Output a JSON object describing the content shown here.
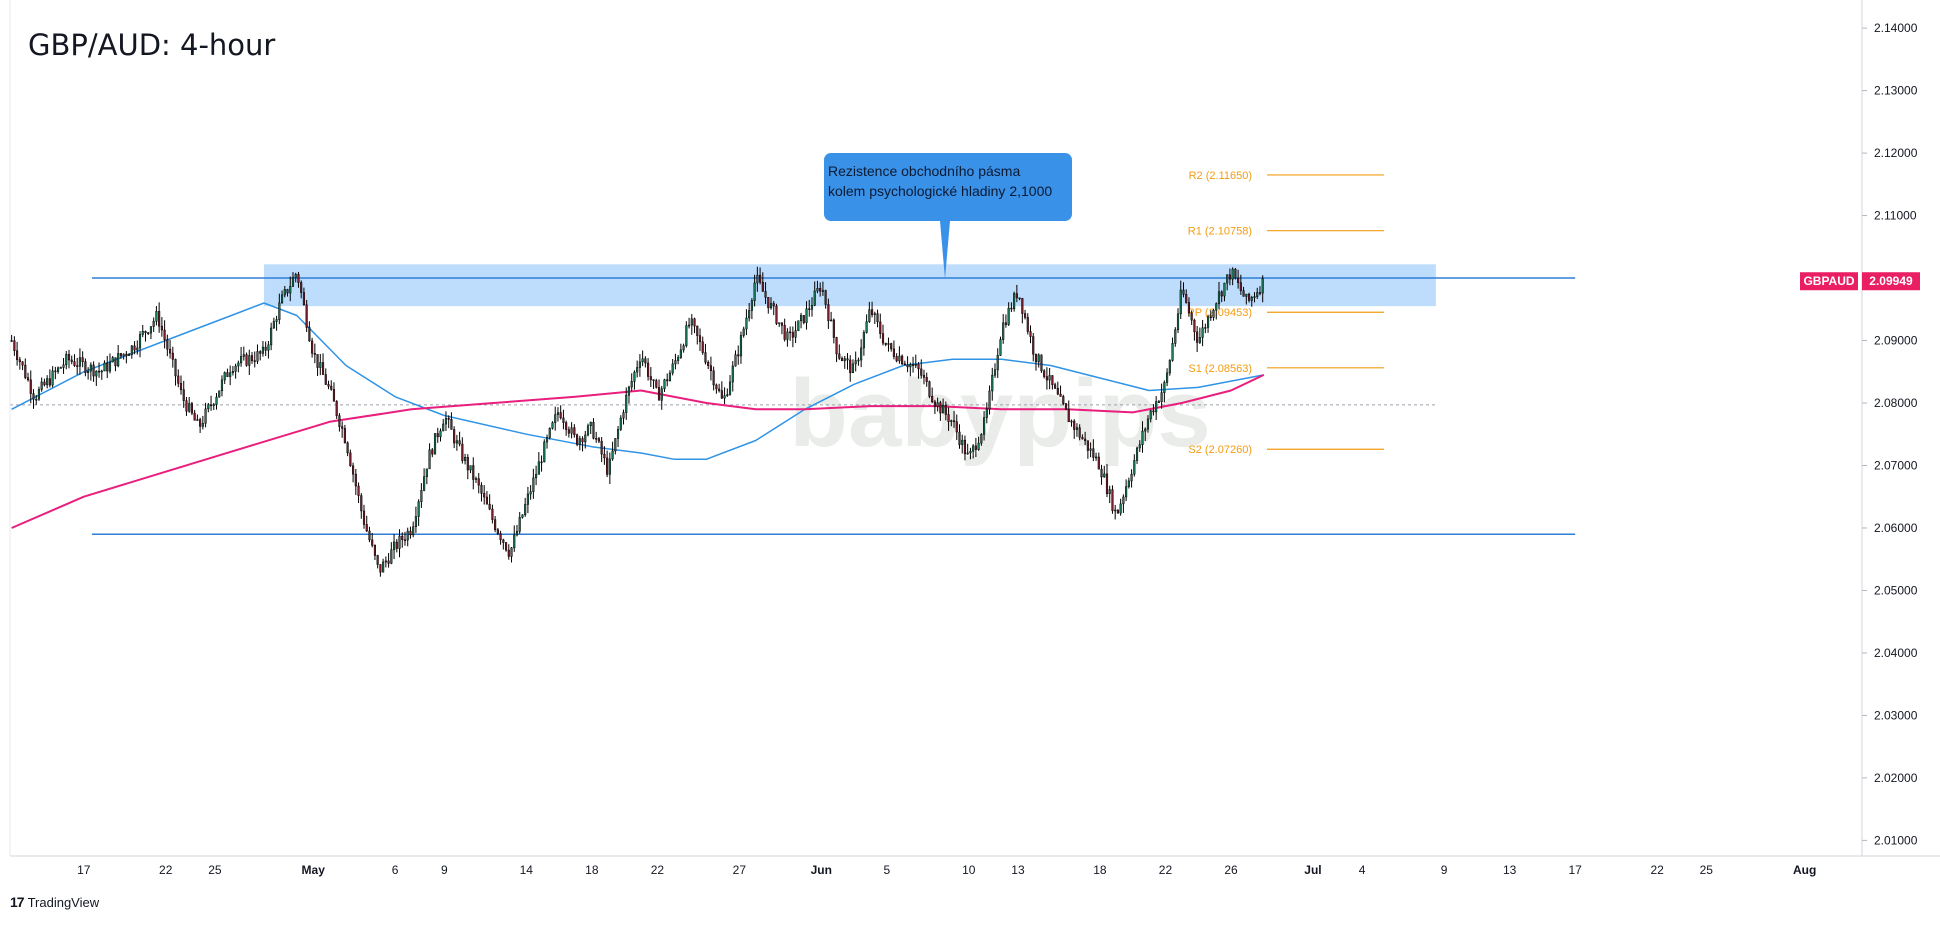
{
  "header": {
    "title": "GBP/AUD: 4-hour"
  },
  "annotation": {
    "line1": "Rezistence obchodního pásma",
    "line2": "kolem psychologické hladiny 2,1000"
  },
  "watermark": {
    "text": "babypips"
  },
  "branding": {
    "text": "TradingView"
  },
  "colors": {
    "up_candle": "#1b7a5a",
    "down_candle": "#7a1f2c",
    "sma_fast": "#2f93e6",
    "sma_slow": "#e91e7d",
    "pivot_levels": "#f39c12",
    "zone": "#b3d7fb",
    "horizontal_lines": "#2f7fd6",
    "price_tag": "#e91e63",
    "callout": "#3a91e8"
  },
  "price_tag": {
    "symbol": "GBPAUD",
    "price": "2.09949"
  },
  "chart_data": {
    "type": "candlestick",
    "symbol": "GBPAUD",
    "timeframe": "4-hour",
    "title": "GBP/AUD: 4-hour",
    "y_axis": {
      "position": "right",
      "ylim": [
        2.0075,
        2.1445
      ],
      "ticks": [
        "2.14000",
        "2.13000",
        "2.12000",
        "2.11000",
        "2.10000",
        "2.09000",
        "2.08000",
        "2.07000",
        "2.06000",
        "2.05000",
        "2.04000",
        "2.03000",
        "2.02000",
        "2.01000"
      ]
    },
    "x_axis": {
      "ticks": [
        {
          "label": "17",
          "day": 0
        },
        {
          "label": "22",
          "day": 5
        },
        {
          "label": "25",
          "day": 8
        },
        {
          "label": "May",
          "day": 14
        },
        {
          "label": "6",
          "day": 19
        },
        {
          "label": "9",
          "day": 22
        },
        {
          "label": "14",
          "day": 27
        },
        {
          "label": "18",
          "day": 31
        },
        {
          "label": "22",
          "day": 35
        },
        {
          "label": "27",
          "day": 40
        },
        {
          "label": "Jun",
          "day": 45
        },
        {
          "label": "5",
          "day": 49
        },
        {
          "label": "10",
          "day": 54
        },
        {
          "label": "13",
          "day": 57
        },
        {
          "label": "18",
          "day": 62
        },
        {
          "label": "22",
          "day": 66
        },
        {
          "label": "26",
          "day": 70
        },
        {
          "label": "Jul",
          "day": 75
        },
        {
          "label": "4",
          "day": 78
        },
        {
          "label": "9",
          "day": 83
        },
        {
          "label": "13",
          "day": 87
        },
        {
          "label": "17",
          "day": 91
        },
        {
          "label": "22",
          "day": 96
        },
        {
          "label": "25",
          "day": 99
        },
        {
          "label": "Aug",
          "day": 105
        }
      ],
      "xlim_days": [
        -4.5,
        108.5
      ]
    },
    "price_path": [
      {
        "day": -4.4,
        "price": 2.09
      },
      {
        "day": -3,
        "price": 2.081
      },
      {
        "day": -1,
        "price": 2.087
      },
      {
        "day": 1,
        "price": 2.085
      },
      {
        "day": 3,
        "price": 2.089
      },
      {
        "day": 4.5,
        "price": 2.094
      },
      {
        "day": 6,
        "price": 2.081
      },
      {
        "day": 7,
        "price": 2.076
      },
      {
        "day": 9,
        "price": 2.086
      },
      {
        "day": 11,
        "price": 2.088
      },
      {
        "day": 12,
        "price": 2.096
      },
      {
        "day": 13,
        "price": 2.101
      },
      {
        "day": 14,
        "price": 2.088
      },
      {
        "day": 15,
        "price": 2.082
      },
      {
        "day": 16,
        "price": 2.074
      },
      {
        "day": 17,
        "price": 2.062
      },
      {
        "day": 18,
        "price": 2.053
      },
      {
        "day": 19,
        "price": 2.057
      },
      {
        "day": 20,
        "price": 2.06
      },
      {
        "day": 21,
        "price": 2.071
      },
      {
        "day": 22,
        "price": 2.078
      },
      {
        "day": 23,
        "price": 2.072
      },
      {
        "day": 24,
        "price": 2.067
      },
      {
        "day": 25,
        "price": 2.061
      },
      {
        "day": 26,
        "price": 2.056
      },
      {
        "day": 27,
        "price": 2.064
      },
      {
        "day": 28,
        "price": 2.072
      },
      {
        "day": 29,
        "price": 2.079
      },
      {
        "day": 30,
        "price": 2.074
      },
      {
        "day": 31,
        "price": 2.076
      },
      {
        "day": 32,
        "price": 2.069
      },
      {
        "day": 33,
        "price": 2.08
      },
      {
        "day": 34,
        "price": 2.088
      },
      {
        "day": 35,
        "price": 2.081
      },
      {
        "day": 36,
        "price": 2.086
      },
      {
        "day": 37,
        "price": 2.093
      },
      {
        "day": 38,
        "price": 2.087
      },
      {
        "day": 39,
        "price": 2.08
      },
      {
        "day": 40,
        "price": 2.089
      },
      {
        "day": 41,
        "price": 2.1
      },
      {
        "day": 42,
        "price": 2.095
      },
      {
        "day": 43,
        "price": 2.09
      },
      {
        "day": 44,
        "price": 2.094
      },
      {
        "day": 45,
        "price": 2.099
      },
      {
        "day": 46,
        "price": 2.088
      },
      {
        "day": 47,
        "price": 2.085
      },
      {
        "day": 48,
        "price": 2.095
      },
      {
        "day": 49,
        "price": 2.089
      },
      {
        "day": 50,
        "price": 2.087
      },
      {
        "day": 51,
        "price": 2.085
      },
      {
        "day": 52,
        "price": 2.08
      },
      {
        "day": 53,
        "price": 2.077
      },
      {
        "day": 54,
        "price": 2.071
      },
      {
        "day": 55,
        "price": 2.077
      },
      {
        "day": 56,
        "price": 2.092
      },
      {
        "day": 57,
        "price": 2.098
      },
      {
        "day": 58,
        "price": 2.088
      },
      {
        "day": 59,
        "price": 2.083
      },
      {
        "day": 60,
        "price": 2.078
      },
      {
        "day": 61,
        "price": 2.074
      },
      {
        "day": 62,
        "price": 2.07
      },
      {
        "day": 63,
        "price": 2.062
      },
      {
        "day": 64,
        "price": 2.07
      },
      {
        "day": 65,
        "price": 2.078
      },
      {
        "day": 66,
        "price": 2.083
      },
      {
        "day": 67,
        "price": 2.098
      },
      {
        "day": 68,
        "price": 2.09
      },
      {
        "day": 69,
        "price": 2.096
      },
      {
        "day": 70,
        "price": 2.101
      },
      {
        "day": 71,
        "price": 2.096
      },
      {
        "day": 72,
        "price": 2.0995
      }
    ],
    "series": [
      {
        "name": "sma_fast",
        "color": "#2f93e6",
        "points": [
          {
            "day": -4.4,
            "price": 2.079
          },
          {
            "day": 0,
            "price": 2.085
          },
          {
            "day": 5,
            "price": 2.09
          },
          {
            "day": 9,
            "price": 2.094
          },
          {
            "day": 11,
            "price": 2.096
          },
          {
            "day": 13,
            "price": 2.094
          },
          {
            "day": 16,
            "price": 2.086
          },
          {
            "day": 19,
            "price": 2.081
          },
          {
            "day": 22,
            "price": 2.078
          },
          {
            "day": 27,
            "price": 2.075
          },
          {
            "day": 31,
            "price": 2.073
          },
          {
            "day": 34,
            "price": 2.072
          },
          {
            "day": 36,
            "price": 2.071
          },
          {
            "day": 38,
            "price": 2.071
          },
          {
            "day": 41,
            "price": 2.074
          },
          {
            "day": 44,
            "price": 2.079
          },
          {
            "day": 47,
            "price": 2.083
          },
          {
            "day": 50,
            "price": 2.086
          },
          {
            "day": 53,
            "price": 2.087
          },
          {
            "day": 56,
            "price": 2.087
          },
          {
            "day": 59,
            "price": 2.086
          },
          {
            "day": 62,
            "price": 2.084
          },
          {
            "day": 65,
            "price": 2.082
          },
          {
            "day": 68,
            "price": 2.0825
          },
          {
            "day": 72,
            "price": 2.0845
          }
        ]
      },
      {
        "name": "sma_slow",
        "color": "#e91e7d",
        "points": [
          {
            "day": -4.4,
            "price": 2.06
          },
          {
            "day": 0,
            "price": 2.065
          },
          {
            "day": 5,
            "price": 2.069
          },
          {
            "day": 10,
            "price": 2.073
          },
          {
            "day": 15,
            "price": 2.077
          },
          {
            "day": 20,
            "price": 2.079
          },
          {
            "day": 25,
            "price": 2.08
          },
          {
            "day": 30,
            "price": 2.081
          },
          {
            "day": 34,
            "price": 2.082
          },
          {
            "day": 38,
            "price": 2.08
          },
          {
            "day": 41,
            "price": 2.079
          },
          {
            "day": 44,
            "price": 2.079
          },
          {
            "day": 48,
            "price": 2.0795
          },
          {
            "day": 52,
            "price": 2.0795
          },
          {
            "day": 56,
            "price": 2.079
          },
          {
            "day": 60,
            "price": 2.079
          },
          {
            "day": 64,
            "price": 2.0785
          },
          {
            "day": 67,
            "price": 2.08
          },
          {
            "day": 70,
            "price": 2.082
          },
          {
            "day": 72,
            "price": 2.0845
          }
        ]
      }
    ],
    "pivot_levels": [
      {
        "label": "R2 (2.11650)",
        "price": 2.1165
      },
      {
        "label": "R1 (2.10758)",
        "price": 2.10758
      },
      {
        "label": "PP (2.09453)",
        "price": 2.09453
      },
      {
        "label": "S1 (2.08563)",
        "price": 2.08563
      },
      {
        "label": "S2 (2.07260)",
        "price": 2.0726
      }
    ],
    "horizontal_lines": [
      {
        "price": 2.1,
        "style": "solid"
      },
      {
        "price": 2.059,
        "style": "solid"
      },
      {
        "price": 2.0797,
        "style": "dashed"
      }
    ],
    "resistance_zone": {
      "from_price": 2.0955,
      "to_price": 2.1022,
      "from_day": 11,
      "to_day": 82.5
    },
    "last_price": 2.09949
  }
}
